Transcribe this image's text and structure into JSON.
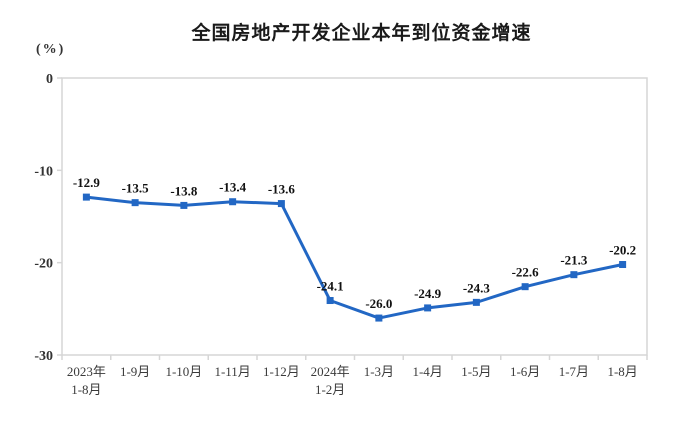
{
  "title": "全国房地产开发企业本年到位资金增速",
  "unit_label": "(%)",
  "colors": {
    "line": "#2267C4",
    "axis": "#d6d6d6",
    "data_label": "#111111",
    "tick_text": "#333333"
  },
  "chart_data": {
    "type": "line",
    "title": "全国房地产开发企业本年到位资金增速",
    "ylabel": "(%)",
    "xlabel": "",
    "legend_position": "none",
    "grid": false,
    "marker": "square",
    "ylim": [
      -30,
      0
    ],
    "yticks": [
      0,
      -10,
      -20,
      -30
    ],
    "categories": [
      [
        "2023年",
        "1-8月"
      ],
      [
        "1-9月"
      ],
      [
        "1-10月"
      ],
      [
        "1-11月"
      ],
      [
        "1-12月"
      ],
      [
        "2024年",
        "1-2月"
      ],
      [
        "1-3月"
      ],
      [
        "1-4月"
      ],
      [
        "1-5月"
      ],
      [
        "1-6月"
      ],
      [
        "1-7月"
      ],
      [
        "1-8月"
      ]
    ],
    "values": [
      -12.9,
      -13.5,
      -13.8,
      -13.4,
      -13.6,
      -24.1,
      -26.0,
      -24.9,
      -24.3,
      -22.6,
      -21.3,
      -20.2
    ]
  }
}
